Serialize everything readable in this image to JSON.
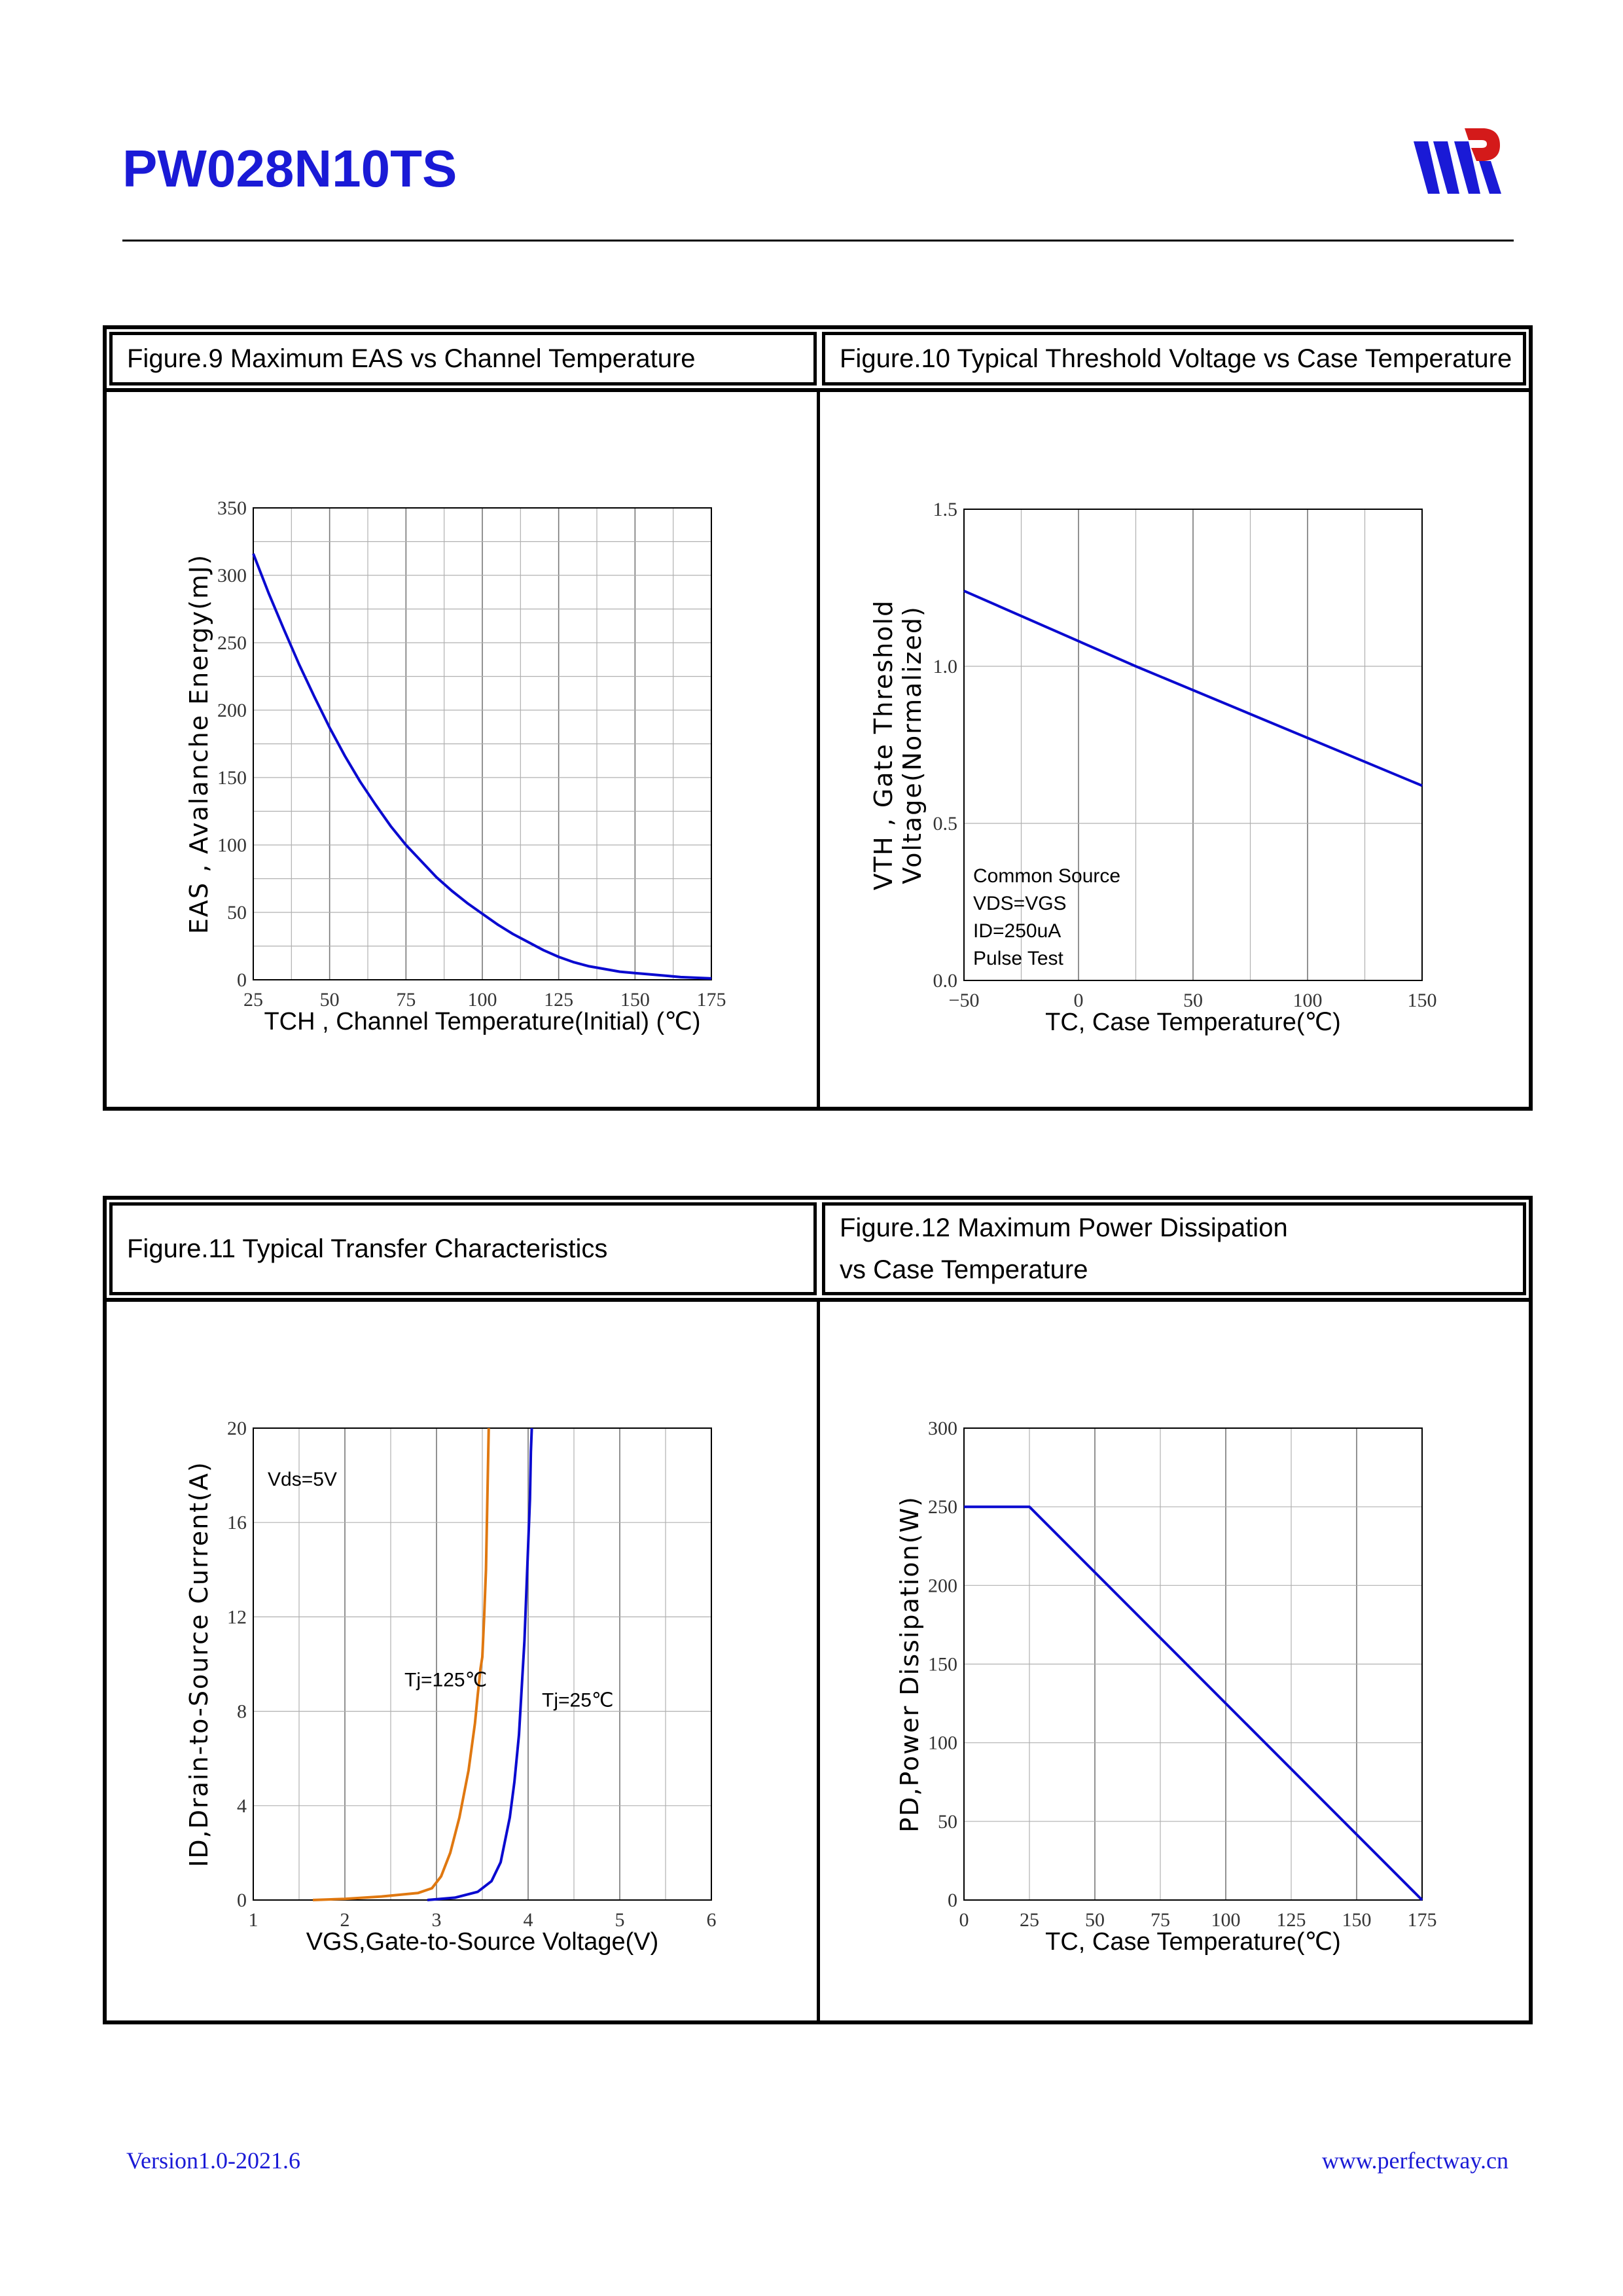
{
  "header": {
    "title": "PW028N10TS"
  },
  "footer": {
    "version": "Version1.0-2021.6",
    "website": "www.perfectway.cn"
  },
  "figures": {
    "fig9": {
      "caption": "Figure.9 Maximum EAS vs Channel Temperature"
    },
    "fig10": {
      "caption": "Figure.10 Typical Threshold Voltage vs Case Temperature"
    },
    "fig11": {
      "caption": "Figure.11 Typical Transfer Characteristics"
    },
    "fig12": {
      "caption_line1": "Figure.12 Maximum Power Dissipation",
      "caption_line2": "vs Case Temperature"
    }
  },
  "colors": {
    "brand": "#1a1ad6",
    "series_blue": "#0a0ad0",
    "series_orange": "#e07810",
    "grid": "#b0b0b0",
    "logo_red": "#d41a1a"
  },
  "chart_data": [
    {
      "id": "fig9",
      "type": "line",
      "xlabel": "TCH , Channel Temperature(Initial) (℃)",
      "ylabel": "EAS , Avalanche Energy(mJ)",
      "xlim": [
        25,
        175
      ],
      "ylim": [
        0,
        350
      ],
      "xticks": [
        "25",
        "50",
        "75",
        "100",
        "125",
        "150",
        "175"
      ],
      "yticks": [
        "0",
        "50",
        "100",
        "150",
        "200",
        "250",
        "300",
        "350"
      ],
      "series": [
        {
          "color": "#0a0ad0",
          "points": [
            [
              25,
              316
            ],
            [
              30,
              287
            ],
            [
              35,
              260
            ],
            [
              40,
              234
            ],
            [
              45,
              210
            ],
            [
              50,
              187
            ],
            [
              55,
              166
            ],
            [
              60,
              147
            ],
            [
              65,
              130
            ],
            [
              70,
              114
            ],
            [
              75,
              100
            ],
            [
              80,
              88
            ],
            [
              85,
              76
            ],
            [
              90,
              66
            ],
            [
              95,
              57
            ],
            [
              100,
              49
            ],
            [
              105,
              41
            ],
            [
              110,
              34
            ],
            [
              115,
              28
            ],
            [
              120,
              22
            ],
            [
              125,
              17
            ],
            [
              130,
              13
            ],
            [
              135,
              10
            ],
            [
              140,
              8
            ],
            [
              145,
              6
            ],
            [
              150,
              5
            ],
            [
              155,
              4
            ],
            [
              160,
              3
            ],
            [
              165,
              2
            ],
            [
              170,
              1.5
            ],
            [
              175,
              1
            ]
          ]
        }
      ],
      "annotations": []
    },
    {
      "id": "fig10",
      "type": "line",
      "xlabel": "TC, Case Temperature(℃)",
      "ylabel_line1": "VTH , Gate Threshold",
      "ylabel_line2": "Voltage(Normalized)",
      "xlim": [
        -50,
        150
      ],
      "ylim": [
        0,
        1.5
      ],
      "xticks": [
        "−50",
        "0",
        "50",
        "100",
        "150"
      ],
      "yticks": [
        "0.0",
        "0.5",
        "1.0",
        "1.5"
      ],
      "series": [
        {
          "color": "#0a0ad0",
          "points": [
            [
              -50,
              1.24
            ],
            [
              25,
              1.0
            ],
            [
              150,
              0.62
            ]
          ]
        }
      ],
      "annotations": [
        "Common Source",
        "VDS=VGS",
        "ID=250uA",
        "Pulse Test"
      ]
    },
    {
      "id": "fig11",
      "type": "line",
      "xlabel": "VGS,Gate-to-Source Voltage(V)",
      "ylabel": "ID,Drain-to-Source Current(A)",
      "xlim": [
        1,
        6
      ],
      "ylim": [
        0,
        20
      ],
      "xticks": [
        "1",
        "2",
        "3",
        "4",
        "5",
        "6"
      ],
      "yticks": [
        "0",
        "4",
        "8",
        "12",
        "16",
        "20"
      ],
      "series": [
        {
          "name": "Tj=125℃",
          "color": "#e07810",
          "points": [
            [
              1.65,
              0
            ],
            [
              2.0,
              0.05
            ],
            [
              2.4,
              0.15
            ],
            [
              2.8,
              0.3
            ],
            [
              2.95,
              0.5
            ],
            [
              3.05,
              1.0
            ],
            [
              3.15,
              2.0
            ],
            [
              3.25,
              3.5
            ],
            [
              3.35,
              5.5
            ],
            [
              3.42,
              7.5
            ],
            [
              3.45,
              8.7
            ],
            [
              3.48,
              9.8
            ],
            [
              3.5,
              10.3
            ],
            [
              3.52,
              12
            ],
            [
              3.54,
              14
            ],
            [
              3.55,
              16
            ],
            [
              3.56,
              18
            ],
            [
              3.57,
              20
            ]
          ]
        },
        {
          "name": "Tj=25℃",
          "color": "#0a0ad0",
          "points": [
            [
              2.9,
              0
            ],
            [
              3.2,
              0.1
            ],
            [
              3.45,
              0.35
            ],
            [
              3.6,
              0.8
            ],
            [
              3.7,
              1.6
            ],
            [
              3.8,
              3.5
            ],
            [
              3.85,
              5.0
            ],
            [
              3.9,
              7.0
            ],
            [
              3.93,
              9.0
            ],
            [
              3.96,
              11
            ],
            [
              3.98,
              13
            ],
            [
              4.0,
              15
            ],
            [
              4.02,
              17
            ],
            [
              4.03,
              19
            ],
            [
              4.04,
              20
            ]
          ]
        }
      ],
      "annotations": [
        "Vds=5V"
      ]
    },
    {
      "id": "fig12",
      "type": "line",
      "xlabel": "TC, Case Temperature(℃)",
      "ylabel": "PD,Power Dissipation(W)",
      "xlim": [
        0,
        175
      ],
      "ylim": [
        0,
        300
      ],
      "xticks": [
        "0",
        "25",
        "50",
        "75",
        "100",
        "125",
        "150",
        "175"
      ],
      "yticks": [
        "0",
        "50",
        "100",
        "150",
        "200",
        "250",
        "300"
      ],
      "series": [
        {
          "color": "#0a0ad0",
          "points": [
            [
              0,
              250
            ],
            [
              25,
              250
            ],
            [
              175,
              0
            ]
          ]
        }
      ],
      "annotations": []
    }
  ]
}
